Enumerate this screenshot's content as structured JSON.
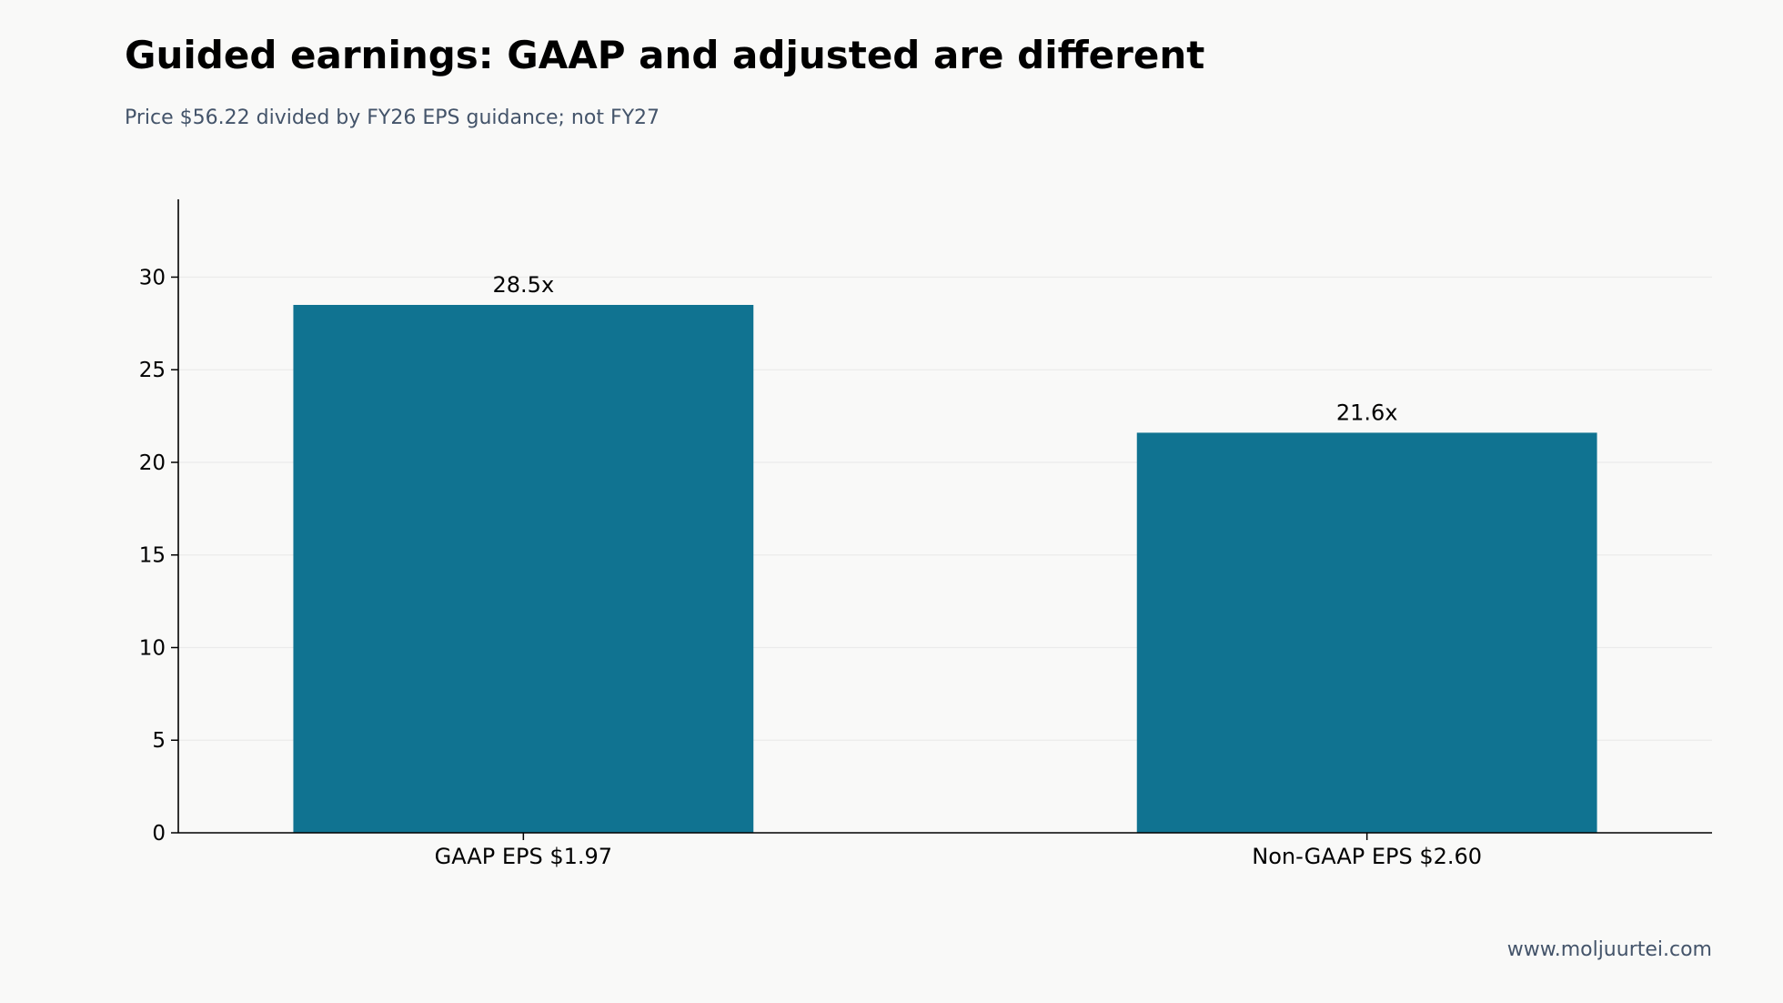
{
  "title": "Guided earnings: GAAP and adjusted are different",
  "subtitle": "Price $56.22 divided by FY26 EPS guidance; not FY27",
  "footer": "www.moljuurtei.com",
  "colors": {
    "bar": "#107391",
    "axis": "#000000",
    "grid": "#ebebeb",
    "background": "#f9f9f8",
    "muted_text": "#44546a"
  },
  "chart_data": {
    "type": "bar",
    "categories": [
      "GAAP EPS $1.97",
      "Non-GAAP EPS $2.60"
    ],
    "values": [
      28.5,
      21.6
    ],
    "data_labels": [
      "28.5x",
      "21.6x"
    ],
    "title": "Guided earnings: GAAP and adjusted are different",
    "subtitle": "Price $56.22 divided by FY26 EPS guidance; not FY27",
    "xlabel": "",
    "ylabel": "",
    "ylim": [
      0,
      34.2
    ],
    "yticks": [
      0,
      5,
      10,
      15,
      20,
      25,
      30
    ],
    "grid": "horizontal",
    "legend": "none"
  }
}
